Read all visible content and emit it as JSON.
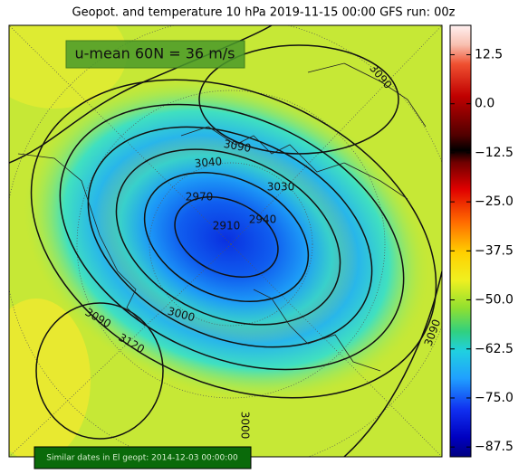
{
  "title": "Geopot. and temperature 10 hPa 2019-11-15 00:00 GFS run: 00z",
  "annotation": "u-mean 60N = 36 m/s",
  "footer": "Similar dates in El geopt: 2014-12-03 00:00:00",
  "colorbar": {
    "range": [
      -90,
      20
    ],
    "ticks": [
      12.5,
      {
        "value": 0,
        "label": "0.0"
      },
      {
        "value": -12.5,
        "label": "−12.5"
      },
      {
        "value": -25,
        "label": "−25.0"
      },
      {
        "value": -37.5,
        "label": "−37.5"
      },
      {
        "value": -50,
        "label": "−50.0"
      },
      {
        "value": -62.5,
        "label": "−62.5"
      },
      {
        "value": -75,
        "label": "−75.0"
      },
      {
        "value": -87.5,
        "label": "−87.5"
      }
    ]
  },
  "contour_labels": [
    "3090",
    "3090",
    "3040",
    "3030",
    "2970",
    "2940",
    "2910",
    "3000",
    "3090",
    "3120",
    "3090",
    "3000"
  ]
}
